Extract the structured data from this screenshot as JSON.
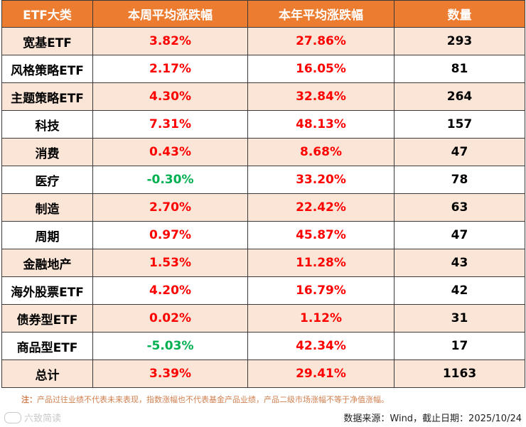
{
  "headers": [
    "ETF大类",
    "本周平均涨跌幅",
    "本年平均涨跌幅",
    "数量"
  ],
  "rows": [
    {
      "category": "宽基ETF",
      "weekly": "3.82%",
      "weekly_sign": "pos",
      "ytd": "27.86%",
      "count": "293"
    },
    {
      "category": "风格策略ETF",
      "weekly": "2.17%",
      "weekly_sign": "pos",
      "ytd": "16.05%",
      "count": "81"
    },
    {
      "category": "主题策略ETF",
      "weekly": "4.30%",
      "weekly_sign": "pos",
      "ytd": "32.84%",
      "count": "264"
    },
    {
      "category": "科技",
      "weekly": "7.31%",
      "weekly_sign": "pos",
      "ytd": "48.13%",
      "count": "157"
    },
    {
      "category": "消费",
      "weekly": "0.43%",
      "weekly_sign": "pos",
      "ytd": "8.68%",
      "count": "47"
    },
    {
      "category": "医疗",
      "weekly": "-0.30%",
      "weekly_sign": "neg",
      "ytd": "33.20%",
      "count": "78"
    },
    {
      "category": "制造",
      "weekly": "2.70%",
      "weekly_sign": "pos",
      "ytd": "22.42%",
      "count": "63"
    },
    {
      "category": "周期",
      "weekly": "0.97%",
      "weekly_sign": "pos",
      "ytd": "45.87%",
      "count": "47"
    },
    {
      "category": "金融地产",
      "weekly": "1.53%",
      "weekly_sign": "pos",
      "ytd": "11.28%",
      "count": "43"
    },
    {
      "category": "海外股票ETF",
      "weekly": "4.20%",
      "weekly_sign": "pos",
      "ytd": "16.79%",
      "count": "42"
    },
    {
      "category": "债券型ETF",
      "weekly": "0.02%",
      "weekly_sign": "pos",
      "ytd": "1.12%",
      "count": "31"
    },
    {
      "category": "商品型ETF",
      "weekly": "-5.03%",
      "weekly_sign": "neg",
      "ytd": "42.34%",
      "count": "17"
    },
    {
      "category": "总计",
      "weekly": "3.39%",
      "weekly_sign": "pos",
      "ytd": "29.41%",
      "count": "1163"
    }
  ],
  "note": {
    "label": "注：",
    "text": "产品过往业绩不代表未来表现，指数涨幅也不代表基金产品业绩，产品二级市场涨幅不等于净值涨幅。"
  },
  "source": "数据来源：Wind，截止日期：2025/10/24",
  "watermark": "六致简读",
  "colors": {
    "header_bg": "#ec7c30",
    "band_bg": "#fbe5d6",
    "positive": "#ff0000",
    "negative": "#00b050"
  }
}
